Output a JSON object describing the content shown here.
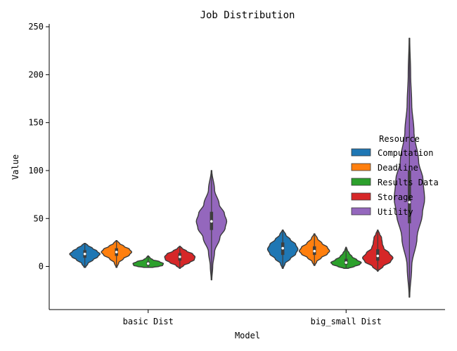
{
  "chart_data": {
    "type": "violin",
    "title": "Job Distribution",
    "xlabel": "Model",
    "ylabel": "Value",
    "categories": [
      "basic Dist",
      "big_small Dist"
    ],
    "ylim": [
      -45,
      253
    ],
    "yticks": [
      0,
      50,
      100,
      150,
      200,
      250
    ],
    "grid": false,
    "legend": {
      "title": "Resource",
      "placement": "right"
    },
    "series": [
      {
        "name": "Computation",
        "color": "#1f77b4",
        "violins": [
          {
            "min": -1,
            "max": 24,
            "median": 13,
            "q1": 9,
            "q3": 17,
            "density": [
              [
                -1,
                0.05
              ],
              [
                3,
                0.2
              ],
              [
                7,
                0.55
              ],
              [
                10,
                0.85
              ],
              [
                13,
                1.0
              ],
              [
                16,
                0.8
              ],
              [
                19,
                0.5
              ],
              [
                22,
                0.2
              ],
              [
                24,
                0.05
              ]
            ]
          },
          {
            "min": -2,
            "max": 38,
            "median": 19,
            "q1": 12,
            "q3": 25,
            "density": [
              [
                -2,
                0.03
              ],
              [
                3,
                0.15
              ],
              [
                8,
                0.5
              ],
              [
                13,
                0.85
              ],
              [
                18,
                1.0
              ],
              [
                23,
                0.85
              ],
              [
                28,
                0.5
              ],
              [
                33,
                0.2
              ],
              [
                38,
                0.03
              ]
            ]
          }
        ]
      },
      {
        "name": "Deadline",
        "color": "#ff7f0e",
        "violins": [
          {
            "min": -1,
            "max": 27,
            "median": 15,
            "q1": 11,
            "q3": 19,
            "density": [
              [
                -1,
                0.03
              ],
              [
                4,
                0.15
              ],
              [
                8,
                0.45
              ],
              [
                12,
                0.85
              ],
              [
                15,
                1.0
              ],
              [
                18,
                0.85
              ],
              [
                21,
                0.5
              ],
              [
                24,
                0.2
              ],
              [
                27,
                0.03
              ]
            ]
          },
          {
            "min": 1,
            "max": 34,
            "median": 16,
            "q1": 12,
            "q3": 21,
            "density": [
              [
                1,
                0.03
              ],
              [
                5,
                0.15
              ],
              [
                9,
                0.45
              ],
              [
                13,
                0.85
              ],
              [
                16,
                1.0
              ],
              [
                20,
                0.85
              ],
              [
                24,
                0.5
              ],
              [
                29,
                0.2
              ],
              [
                34,
                0.03
              ]
            ]
          }
        ]
      },
      {
        "name": "Results Data",
        "color": "#2ca02c",
        "violins": [
          {
            "min": -1,
            "max": 11,
            "median": 3,
            "q1": 1,
            "q3": 5,
            "density": [
              [
                -1,
                0.3
              ],
              [
                0,
                0.7
              ],
              [
                1,
                0.95
              ],
              [
                3,
                1.0
              ],
              [
                5,
                0.75
              ],
              [
                7,
                0.3
              ],
              [
                9,
                0.12
              ],
              [
                11,
                0.03
              ]
            ]
          },
          {
            "min": -2,
            "max": 20,
            "median": 4,
            "q1": 2,
            "q3": 8,
            "density": [
              [
                -2,
                0.15
              ],
              [
                0,
                0.55
              ],
              [
                2,
                0.9
              ],
              [
                4,
                1.0
              ],
              [
                7,
                0.7
              ],
              [
                10,
                0.4
              ],
              [
                14,
                0.2
              ],
              [
                17,
                0.08
              ],
              [
                20,
                0.02
              ]
            ]
          }
        ]
      },
      {
        "name": "Storage",
        "color": "#d62728",
        "violins": [
          {
            "min": -2,
            "max": 21,
            "median": 10,
            "q1": 6,
            "q3": 14,
            "density": [
              [
                -2,
                0.03
              ],
              [
                1,
                0.25
              ],
              [
                4,
                0.65
              ],
              [
                7,
                0.95
              ],
              [
                10,
                1.0
              ],
              [
                13,
                0.85
              ],
              [
                16,
                0.45
              ],
              [
                19,
                0.15
              ],
              [
                21,
                0.03
              ]
            ]
          },
          {
            "min": -5,
            "max": 38,
            "median": 11,
            "q1": 6,
            "q3": 18,
            "density": [
              [
                -5,
                0.02
              ],
              [
                0,
                0.35
              ],
              [
                5,
                0.85
              ],
              [
                9,
                1.0
              ],
              [
                14,
                0.75
              ],
              [
                19,
                0.4
              ],
              [
                24,
                0.3
              ],
              [
                30,
                0.25
              ],
              [
                34,
                0.12
              ],
              [
                38,
                0.02
              ]
            ]
          }
        ]
      },
      {
        "name": "Utility",
        "color": "#9467bd",
        "violins": [
          {
            "min": -14,
            "max": 100,
            "median": 47,
            "q1": 38,
            "q3": 57,
            "density": [
              [
                -14,
                0.02
              ],
              [
                0,
                0.08
              ],
              [
                15,
                0.2
              ],
              [
                30,
                0.55
              ],
              [
                40,
                0.9
              ],
              [
                47,
                1.0
              ],
              [
                55,
                0.85
              ],
              [
                65,
                0.5
              ],
              [
                80,
                0.2
              ],
              [
                100,
                0.02
              ]
            ]
          },
          {
            "min": -32,
            "max": 238,
            "median": 67,
            "q1": 45,
            "q3": 100,
            "density": [
              [
                -32,
                0.02
              ],
              [
                0,
                0.15
              ],
              [
                30,
                0.5
              ],
              [
                55,
                0.85
              ],
              [
                70,
                1.0
              ],
              [
                90,
                0.9
              ],
              [
                110,
                0.6
              ],
              [
                140,
                0.3
              ],
              [
                170,
                0.15
              ],
              [
                200,
                0.08
              ],
              [
                238,
                0.02
              ]
            ]
          }
        ]
      }
    ]
  }
}
